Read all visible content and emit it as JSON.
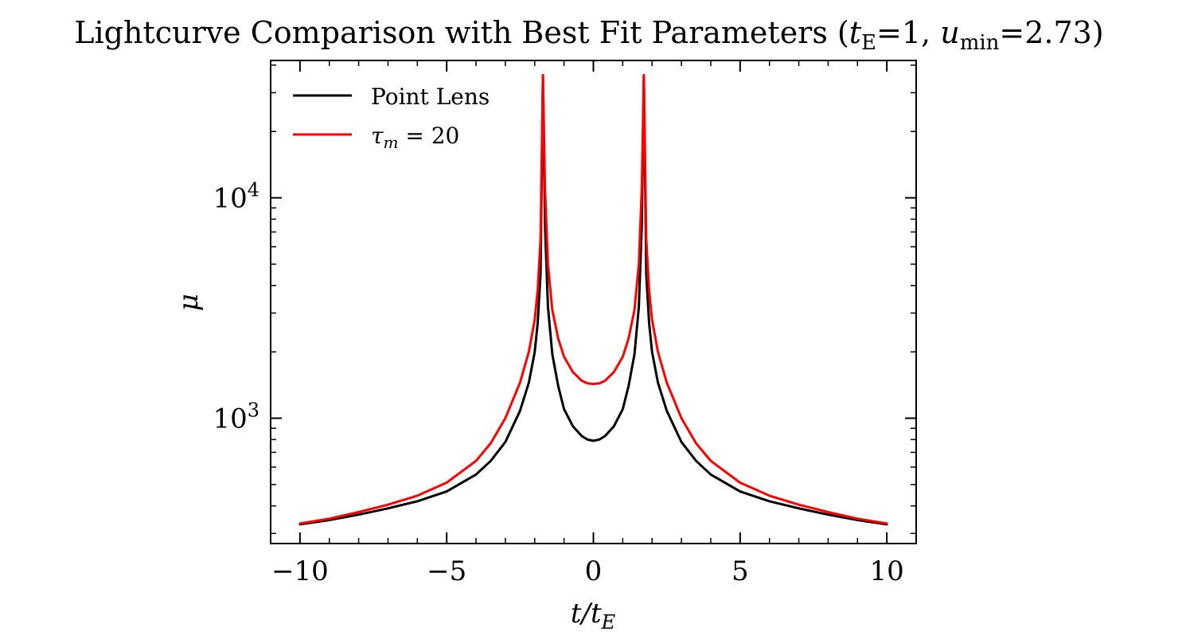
{
  "chart_data": {
    "type": "line",
    "title": {
      "prefix": "Lightcurve Comparison with Best Fit Parameters (",
      "t_symbol": "t",
      "t_sub": "E",
      "t_value": "=1, ",
      "u_symbol": "u",
      "u_sub": "min",
      "u_value": "=2.73)"
    },
    "xlabel": {
      "main": "t/t",
      "sub": "E"
    },
    "ylabel": "μ",
    "xlim": [
      -11,
      11
    ],
    "ylim": [
      270,
      42000
    ],
    "yscale": "log",
    "xticks": [
      {
        "value": -10,
        "label": "−10"
      },
      {
        "value": -5,
        "label": "−5"
      },
      {
        "value": 0,
        "label": "0"
      },
      {
        "value": 5,
        "label": "5"
      },
      {
        "value": 10,
        "label": "10"
      }
    ],
    "yticks": [
      {
        "value": 1000,
        "base": "10",
        "exp": "3"
      },
      {
        "value": 10000,
        "base": "10",
        "exp": "4"
      }
    ],
    "legend_position": "top-left",
    "series": [
      {
        "name": "Point Lens",
        "color": "#000000",
        "x": [
          -10,
          -9,
          -8,
          -7,
          -6,
          -5,
          -4,
          -3.5,
          -3,
          -2.5,
          -2.2,
          -2.0,
          -1.9,
          -1.8,
          -1.72,
          -1.65,
          -1.55,
          -1.4,
          -1.2,
          -1.0,
          -0.7,
          -0.4,
          -0.2,
          0,
          0.2,
          0.4,
          0.7,
          1.0,
          1.2,
          1.4,
          1.55,
          1.65,
          1.72,
          1.8,
          1.9,
          2.0,
          2.2,
          2.5,
          3,
          3.5,
          4,
          5,
          6,
          7,
          8,
          9,
          10
        ],
        "y": [
          330,
          345,
          365,
          390,
          420,
          465,
          555,
          640,
          780,
          1080,
          1450,
          2000,
          2700,
          4500,
          36000,
          7500,
          3200,
          1950,
          1400,
          1100,
          920,
          830,
          800,
          790,
          800,
          830,
          920,
          1100,
          1400,
          1950,
          3200,
          7500,
          36000,
          4500,
          2700,
          2000,
          1450,
          1080,
          780,
          640,
          555,
          465,
          420,
          390,
          365,
          345,
          330
        ]
      },
      {
        "name": "τ_m = 20",
        "legend_label": {
          "symbol": "τ",
          "sub": "m",
          "value": " = 20"
        },
        "color": "#ff0000",
        "x": [
          -10,
          -9,
          -8,
          -7,
          -6,
          -5,
          -4,
          -3.5,
          -3,
          -2.5,
          -2.2,
          -2.0,
          -1.9,
          -1.8,
          -1.72,
          -1.65,
          -1.55,
          -1.4,
          -1.2,
          -1.0,
          -0.7,
          -0.4,
          -0.2,
          0,
          0.2,
          0.4,
          0.7,
          1.0,
          1.2,
          1.4,
          1.55,
          1.65,
          1.72,
          1.8,
          1.9,
          2.0,
          2.2,
          2.5,
          3,
          3.5,
          4,
          5,
          6,
          7,
          8,
          9,
          10
        ],
        "y": [
          333,
          350,
          375,
          405,
          445,
          510,
          640,
          770,
          1000,
          1450,
          2000,
          2800,
          3800,
          6500,
          36000,
          11000,
          5000,
          3100,
          2300,
          1900,
          1620,
          1480,
          1440,
          1430,
          1440,
          1480,
          1620,
          1900,
          2300,
          3100,
          5000,
          11000,
          36000,
          6500,
          3800,
          2800,
          2000,
          1450,
          1000,
          770,
          640,
          510,
          445,
          405,
          375,
          350,
          333
        ]
      }
    ]
  }
}
